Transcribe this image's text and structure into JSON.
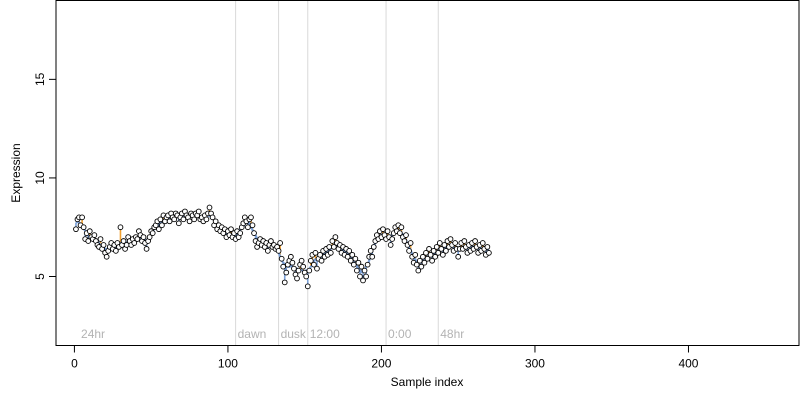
{
  "chart_data": {
    "type": "scatter",
    "xlabel": "Sample index",
    "ylabel": "Expression",
    "xlim": [
      -12,
      472
    ],
    "ylim": [
      1.5,
      19
    ],
    "x_ticks": [
      0,
      100,
      200,
      300,
      400
    ],
    "y_ticks": [
      5,
      10,
      15
    ],
    "x_tick_labels": [
      "0",
      "100",
      "200",
      "300",
      "400"
    ],
    "y_tick_labels": [
      "5",
      "10",
      "15"
    ],
    "grid": false,
    "legend": "none",
    "colors": {
      "points_fill": "#ffffff",
      "points_stroke": "#000000",
      "fitted_line": "#7a9fd6",
      "residual_above": "#f0a030",
      "residual_below": "#7a9fd6",
      "annotation": "#b3b3b3",
      "vline": "#d9d9d9"
    },
    "annotations": [
      {
        "x": 3,
        "label": "24hr",
        "line": false
      },
      {
        "x": 105,
        "label": "dawn",
        "line": true
      },
      {
        "x": 133,
        "label": "dusk",
        "line": true
      },
      {
        "x": 152,
        "label": "12:00",
        "line": true
      },
      {
        "x": 203,
        "label": "0:00",
        "line": true
      },
      {
        "x": 237,
        "label": "48hr",
        "line": true
      }
    ],
    "series": [
      {
        "points": [
          [
            1,
            7.4
          ],
          [
            2,
            7.9
          ],
          [
            3,
            8.0
          ],
          [
            4,
            7.6
          ],
          [
            5,
            8.0
          ],
          [
            6,
            7.5
          ],
          [
            7,
            6.9
          ],
          [
            8,
            7.2
          ],
          [
            9,
            6.8
          ],
          [
            10,
            7.3
          ],
          [
            11,
            7.0
          ],
          [
            12,
            6.9
          ],
          [
            13,
            7.1
          ],
          [
            14,
            6.8
          ],
          [
            15,
            6.6
          ],
          [
            16,
            6.5
          ],
          [
            17,
            6.9
          ],
          [
            18,
            6.4
          ],
          [
            19,
            6.6
          ],
          [
            20,
            6.2
          ],
          [
            21,
            6.0
          ],
          [
            22,
            6.3
          ],
          [
            23,
            6.5
          ],
          [
            24,
            6.7
          ],
          [
            25,
            6.4
          ],
          [
            26,
            6.6
          ],
          [
            27,
            6.3
          ],
          [
            28,
            6.7
          ],
          [
            29,
            6.5
          ],
          [
            30,
            7.5
          ],
          [
            31,
            6.6
          ],
          [
            32,
            6.8
          ],
          [
            33,
            6.4
          ],
          [
            34,
            6.6
          ],
          [
            35,
            7.0
          ],
          [
            36,
            6.8
          ],
          [
            37,
            6.6
          ],
          [
            38,
            6.9
          ],
          [
            39,
            6.7
          ],
          [
            40,
            7.0
          ],
          [
            41,
            6.9
          ],
          [
            42,
            7.3
          ],
          [
            43,
            7.1
          ],
          [
            44,
            6.8
          ],
          [
            45,
            7.0
          ],
          [
            46,
            6.7
          ],
          [
            47,
            6.4
          ],
          [
            48,
            6.8
          ],
          [
            49,
            7.0
          ],
          [
            50,
            7.3
          ],
          [
            51,
            7.2
          ],
          [
            52,
            7.5
          ],
          [
            53,
            7.6
          ],
          [
            54,
            7.8
          ],
          [
            55,
            7.4
          ],
          [
            56,
            7.9
          ],
          [
            57,
            7.6
          ],
          [
            58,
            8.1
          ],
          [
            59,
            7.8
          ],
          [
            60,
            8.0
          ],
          [
            61,
            8.1
          ],
          [
            62,
            7.8
          ],
          [
            63,
            8.2
          ],
          [
            64,
            8.0
          ],
          [
            65,
            7.9
          ],
          [
            66,
            8.2
          ],
          [
            67,
            8.1
          ],
          [
            68,
            7.7
          ],
          [
            69,
            8.0
          ],
          [
            70,
            8.2
          ],
          [
            71,
            7.9
          ],
          [
            72,
            8.3
          ],
          [
            73,
            8.1
          ],
          [
            74,
            8.0
          ],
          [
            75,
            7.8
          ],
          [
            76,
            8.2
          ],
          [
            77,
            8.1
          ],
          [
            78,
            7.9
          ],
          [
            79,
            8.2
          ],
          [
            80,
            8.1
          ],
          [
            81,
            8.3
          ],
          [
            82,
            7.9
          ],
          [
            83,
            8.0
          ],
          [
            84,
            7.8
          ],
          [
            85,
            8.1
          ],
          [
            86,
            7.9
          ],
          [
            87,
            8.2
          ],
          [
            88,
            8.5
          ],
          [
            89,
            8.2
          ],
          [
            90,
            8.0
          ],
          [
            91,
            7.6
          ],
          [
            92,
            7.8
          ],
          [
            93,
            7.4
          ],
          [
            94,
            7.6
          ],
          [
            95,
            7.3
          ],
          [
            96,
            7.5
          ],
          [
            97,
            7.2
          ],
          [
            98,
            7.4
          ],
          [
            99,
            7.0
          ],
          [
            100,
            7.3
          ],
          [
            101,
            7.1
          ],
          [
            102,
            7.4
          ],
          [
            103,
            7.0
          ],
          [
            104,
            7.2
          ],
          [
            105,
            6.9
          ],
          [
            106,
            7.3
          ],
          [
            107,
            7.0
          ],
          [
            108,
            7.2
          ],
          [
            109,
            7.5
          ],
          [
            110,
            7.7
          ],
          [
            111,
            8.0
          ],
          [
            112,
            7.8
          ],
          [
            113,
            7.5
          ],
          [
            114,
            7.9
          ],
          [
            115,
            8.0
          ],
          [
            116,
            7.6
          ],
          [
            117,
            7.2
          ],
          [
            118,
            6.8
          ],
          [
            119,
            6.5
          ],
          [
            120,
            6.7
          ],
          [
            121,
            6.9
          ],
          [
            122,
            6.6
          ],
          [
            123,
            6.8
          ],
          [
            124,
            6.5
          ],
          [
            125,
            6.7
          ],
          [
            126,
            6.3
          ],
          [
            127,
            6.6
          ],
          [
            128,
            6.8
          ],
          [
            129,
            6.5
          ],
          [
            130,
            6.6
          ],
          [
            131,
            6.4
          ],
          [
            132,
            6.5
          ],
          [
            133,
            6.3
          ],
          [
            134,
            6.7
          ],
          [
            135,
            5.9
          ],
          [
            136,
            5.5
          ],
          [
            137,
            4.7
          ],
          [
            138,
            5.2
          ],
          [
            139,
            5.6
          ],
          [
            140,
            5.8
          ],
          [
            141,
            6.0
          ],
          [
            142,
            5.7
          ],
          [
            143,
            5.4
          ],
          [
            144,
            5.1
          ],
          [
            145,
            4.9
          ],
          [
            146,
            5.3
          ],
          [
            147,
            5.6
          ],
          [
            148,
            5.8
          ],
          [
            149,
            5.5
          ],
          [
            150,
            5.2
          ],
          [
            151,
            5.0
          ],
          [
            152,
            4.5
          ],
          [
            153,
            5.3
          ],
          [
            154,
            5.8
          ],
          [
            155,
            6.1
          ],
          [
            156,
            5.6
          ],
          [
            157,
            6.2
          ],
          [
            158,
            5.4
          ],
          [
            159,
            5.9
          ],
          [
            160,
            6.1
          ],
          [
            161,
            5.8
          ],
          [
            162,
            6.3
          ],
          [
            163,
            6.0
          ],
          [
            164,
            6.4
          ],
          [
            165,
            6.1
          ],
          [
            166,
            6.5
          ],
          [
            167,
            6.2
          ],
          [
            168,
            6.8
          ],
          [
            169,
            6.5
          ],
          [
            170,
            7.0
          ],
          [
            171,
            6.7
          ],
          [
            172,
            6.4
          ],
          [
            173,
            6.6
          ],
          [
            174,
            6.2
          ],
          [
            175,
            6.5
          ],
          [
            176,
            6.1
          ],
          [
            177,
            6.4
          ],
          [
            178,
            6.0
          ],
          [
            179,
            6.3
          ],
          [
            180,
            5.8
          ],
          [
            181,
            6.1
          ],
          [
            182,
            5.6
          ],
          [
            183,
            5.9
          ],
          [
            184,
            5.3
          ],
          [
            185,
            5.7
          ],
          [
            186,
            5.0
          ],
          [
            187,
            5.5
          ],
          [
            188,
            4.8
          ],
          [
            189,
            5.3
          ],
          [
            190,
            5.0
          ],
          [
            191,
            5.6
          ],
          [
            192,
            6.0
          ],
          [
            193,
            6.3
          ],
          [
            194,
            6.0
          ],
          [
            195,
            6.5
          ],
          [
            196,
            6.8
          ],
          [
            197,
            7.1
          ],
          [
            198,
            6.9
          ],
          [
            199,
            7.3
          ],
          [
            200,
            7.0
          ],
          [
            201,
            7.4
          ],
          [
            202,
            7.1
          ],
          [
            203,
            6.9
          ],
          [
            204,
            7.3
          ],
          [
            205,
            7.0
          ],
          [
            206,
            6.6
          ],
          [
            207,
            6.9
          ],
          [
            208,
            7.2
          ],
          [
            209,
            7.5
          ],
          [
            210,
            7.3
          ],
          [
            211,
            7.6
          ],
          [
            212,
            7.2
          ],
          [
            213,
            7.5
          ],
          [
            214,
            7.0
          ],
          [
            215,
            6.8
          ],
          [
            216,
            7.1
          ],
          [
            217,
            6.6
          ],
          [
            218,
            6.3
          ],
          [
            219,
            6.7
          ],
          [
            220,
            6.0
          ],
          [
            221,
            5.7
          ],
          [
            222,
            6.1
          ],
          [
            223,
            5.6
          ],
          [
            224,
            5.3
          ],
          [
            225,
            5.8
          ],
          [
            226,
            5.5
          ],
          [
            227,
            6.0
          ],
          [
            228,
            5.7
          ],
          [
            229,
            6.2
          ],
          [
            230,
            5.9
          ],
          [
            231,
            6.4
          ],
          [
            232,
            6.1
          ],
          [
            233,
            5.8
          ],
          [
            234,
            6.3
          ],
          [
            235,
            6.0
          ],
          [
            236,
            6.5
          ],
          [
            237,
            6.2
          ],
          [
            238,
            6.7
          ],
          [
            239,
            6.4
          ],
          [
            240,
            6.1
          ],
          [
            241,
            6.6
          ],
          [
            242,
            6.3
          ],
          [
            243,
            6.8
          ],
          [
            244,
            6.5
          ],
          [
            245,
            6.9
          ],
          [
            246,
            6.6
          ],
          [
            247,
            6.3
          ],
          [
            248,
            6.7
          ],
          [
            249,
            6.4
          ],
          [
            250,
            6.0
          ],
          [
            251,
            6.4
          ],
          [
            252,
            6.7
          ],
          [
            253,
            6.4
          ],
          [
            254,
            6.8
          ],
          [
            255,
            6.5
          ],
          [
            256,
            6.2
          ],
          [
            257,
            6.6
          ],
          [
            258,
            6.3
          ],
          [
            259,
            6.7
          ],
          [
            260,
            6.4
          ],
          [
            261,
            6.8
          ],
          [
            262,
            6.5
          ],
          [
            263,
            6.2
          ],
          [
            264,
            6.6
          ],
          [
            265,
            6.3
          ],
          [
            266,
            6.7
          ],
          [
            267,
            6.4
          ],
          [
            268,
            6.1
          ],
          [
            269,
            6.5
          ],
          [
            270,
            6.2
          ]
        ]
      }
    ]
  }
}
